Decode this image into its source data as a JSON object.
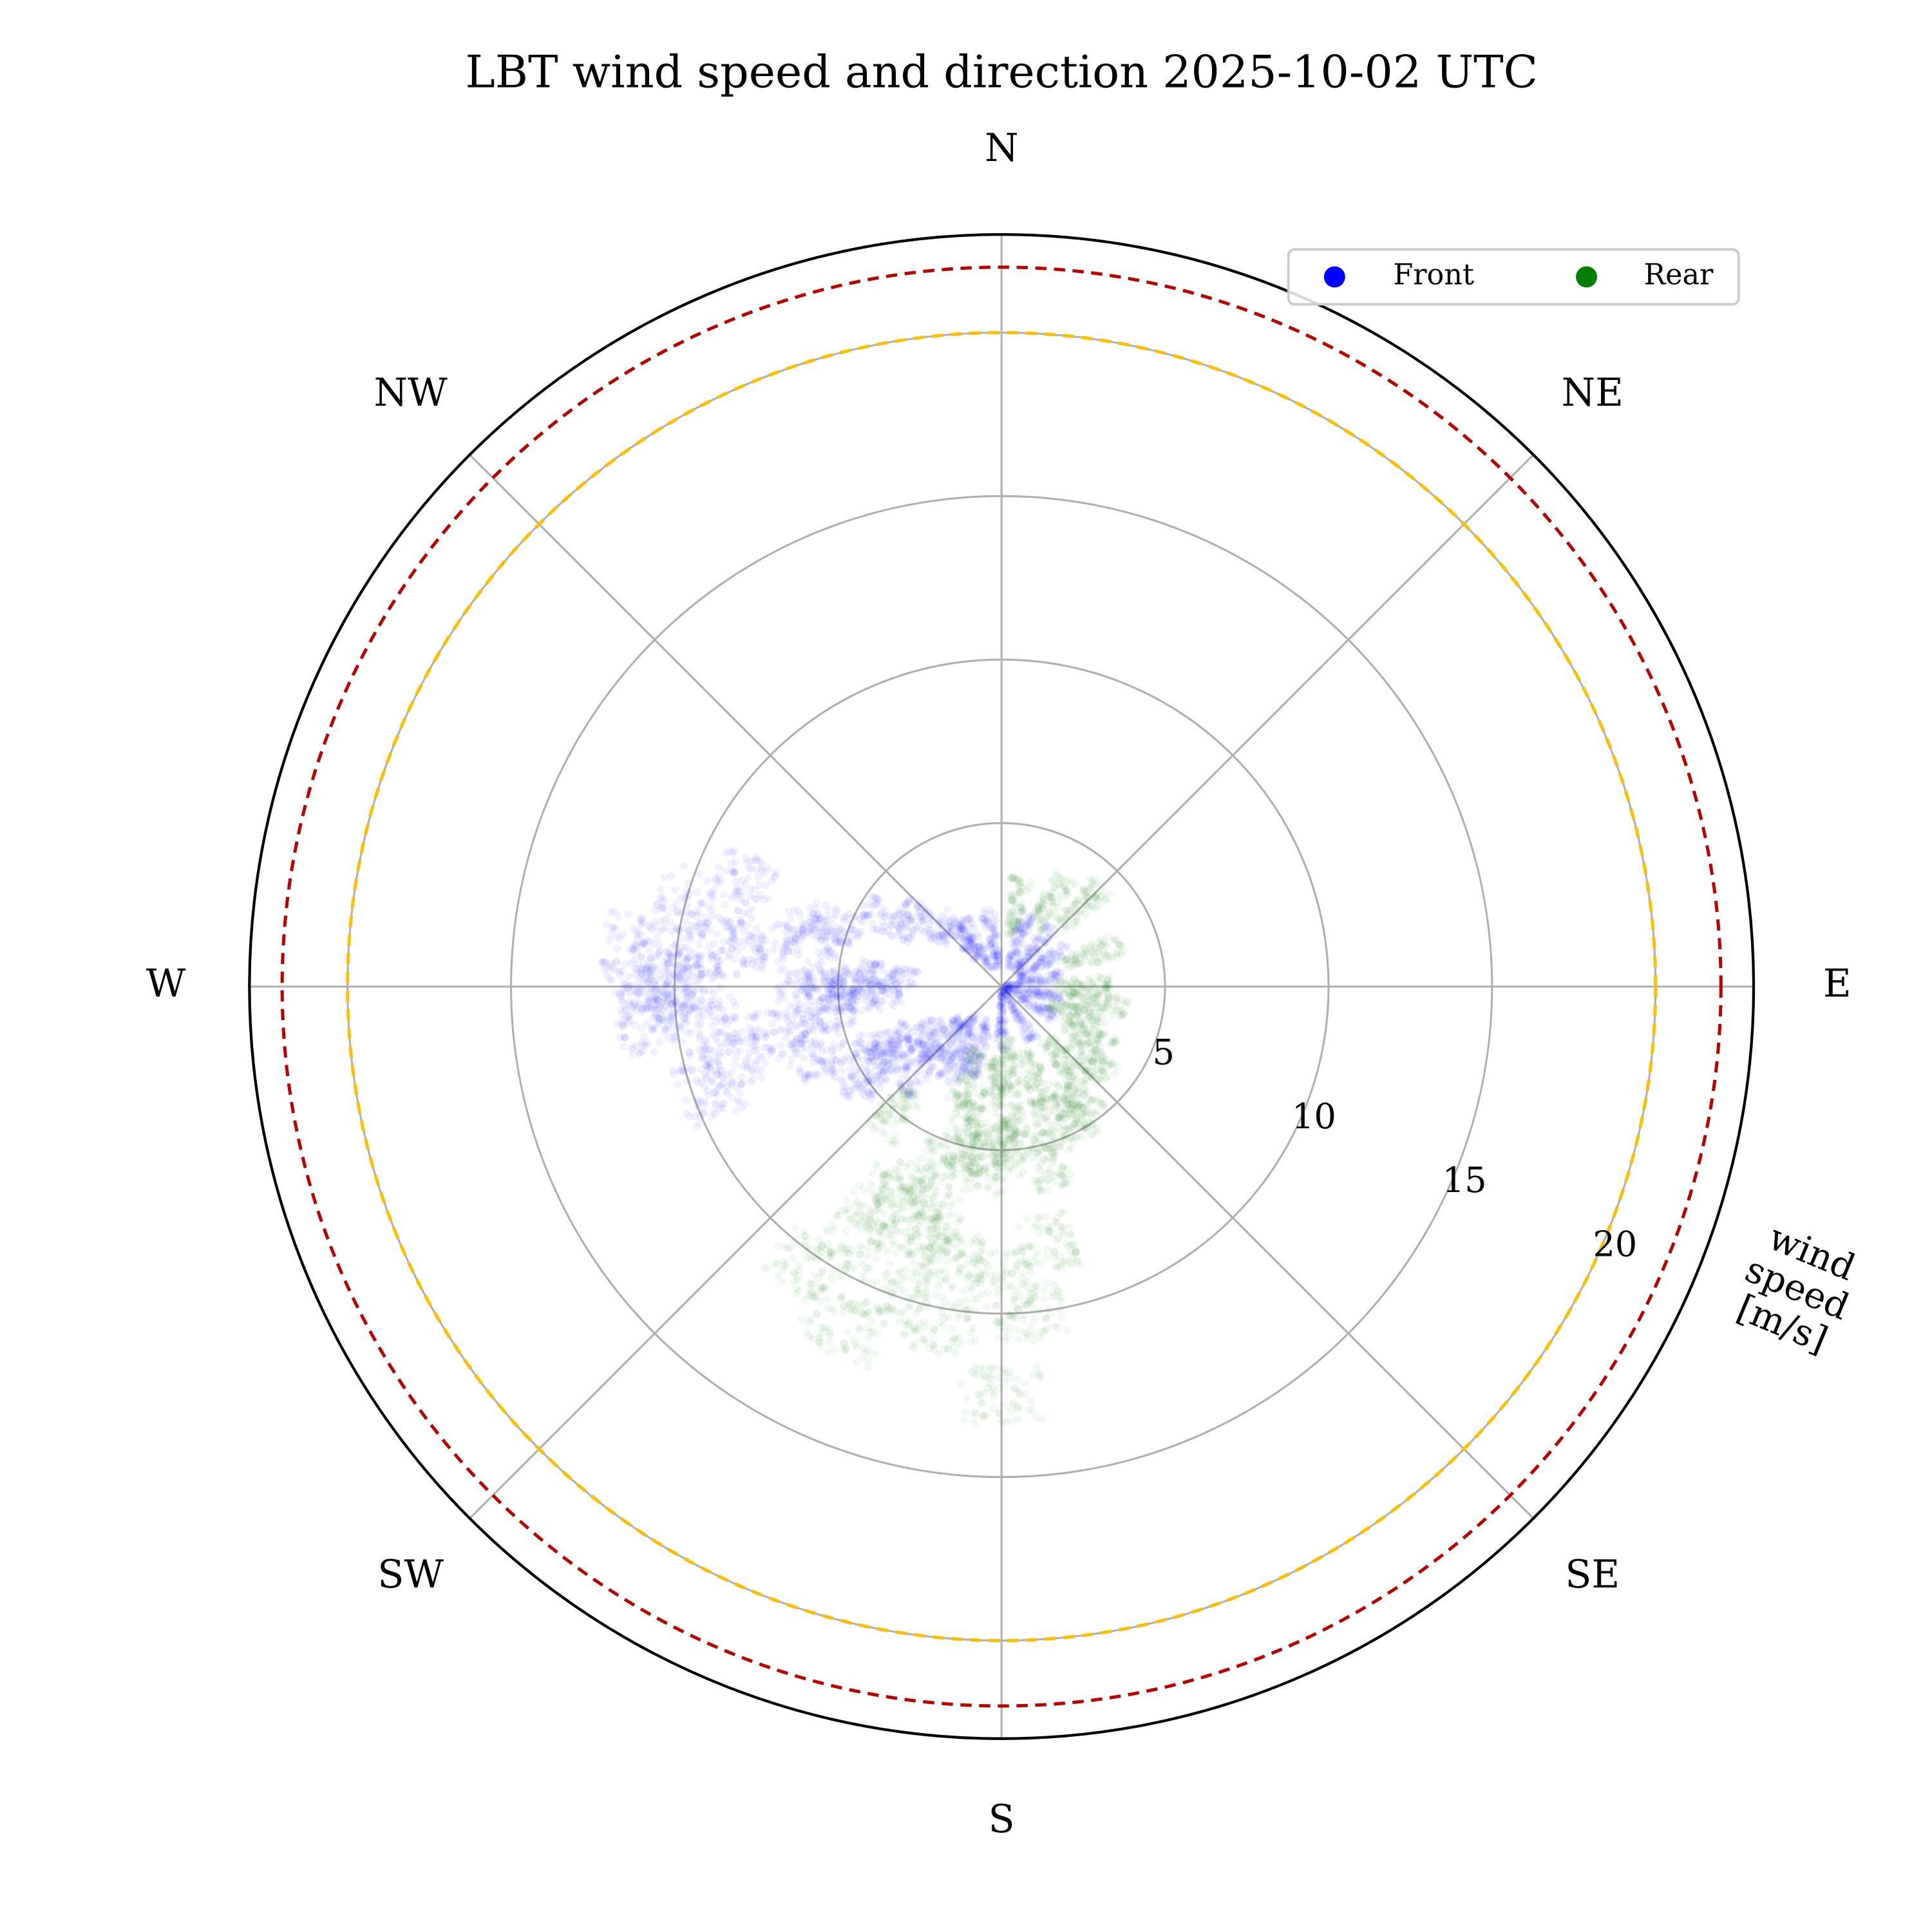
{
  "chart_data": {
    "type": "scatter",
    "projection": "polar",
    "title": "LBT wind speed and direction 2025-10-02 UTC",
    "theta_zero": "N",
    "theta_direction": "clockwise",
    "direction_labels": [
      "N",
      "NE",
      "E",
      "SE",
      "S",
      "SW",
      "W",
      "NW"
    ],
    "rlim": [
      0,
      23
    ],
    "rticks": [
      5,
      10,
      15,
      20
    ],
    "rlabel": "wind\nspeed\n[m/s]",
    "grid": true,
    "legend": {
      "position": "top-right",
      "columns": 2
    },
    "reference_circles": [
      {
        "r": 20,
        "color": "#ffbf00",
        "style": "dashed"
      },
      {
        "r": 22,
        "color": "#bb0000",
        "style": "dashed"
      }
    ],
    "series": [
      {
        "name": "Front",
        "color": "#0000ff",
        "point_alpha": 0.05,
        "points_dir_speed": [
          [
            270,
            4.5
          ],
          [
            272,
            5.2
          ],
          [
            268,
            6.0
          ],
          [
            265,
            4.0
          ],
          [
            275,
            3.5
          ],
          [
            262,
            5.5
          ],
          [
            270,
            10.0
          ],
          [
            268,
            11.0
          ],
          [
            272,
            10.5
          ],
          [
            270,
            9.5
          ],
          [
            275,
            11.5
          ],
          [
            265,
            10.8
          ],
          [
            258,
            7.0
          ],
          [
            250,
            6.0
          ],
          [
            245,
            4.0
          ],
          [
            240,
            3.0
          ],
          [
            230,
            2.5
          ],
          [
            220,
            2.0
          ],
          [
            210,
            2.5
          ],
          [
            200,
            2.0
          ],
          [
            280,
            7.5
          ],
          [
            285,
            6.0
          ],
          [
            290,
            5.5
          ],
          [
            300,
            4.0
          ],
          [
            310,
            3.0
          ],
          [
            320,
            2.0
          ],
          [
            330,
            1.5
          ],
          [
            350,
            1.5
          ],
          [
            20,
            1.5
          ],
          [
            40,
            1.5
          ],
          [
            60,
            1.5
          ],
          [
            80,
            1.0
          ],
          [
            100,
            1.0
          ],
          [
            120,
            1.0
          ],
          [
            150,
            1.0
          ],
          [
            180,
            1.0
          ],
          [
            255,
            8.5
          ],
          [
            262,
            9.0
          ],
          [
            278,
            9.0
          ],
          [
            285,
            10.0
          ],
          [
            292,
            8.5
          ],
          [
            250,
            9.5
          ],
          [
            240,
            5.0
          ],
          [
            235,
            4.5
          ],
          [
            225,
            3.5
          ]
        ]
      },
      {
        "name": "Rear",
        "color": "#007f00",
        "point_alpha": 0.05,
        "points_dir_speed": [
          [
            190,
            5.0
          ],
          [
            195,
            4.5
          ],
          [
            185,
            5.5
          ],
          [
            200,
            6.0
          ],
          [
            178,
            5.0
          ],
          [
            175,
            4.5
          ],
          [
            160,
            4.5
          ],
          [
            150,
            4.5
          ],
          [
            145,
            4.0
          ],
          [
            165,
            5.5
          ],
          [
            205,
            7.0
          ],
          [
            200,
            8.0
          ],
          [
            195,
            7.5
          ],
          [
            190,
            8.5
          ],
          [
            180,
            9.0
          ],
          [
            170,
            8.0
          ],
          [
            210,
            9.0
          ],
          [
            200,
            10.0
          ],
          [
            190,
            10.5
          ],
          [
            175,
            10.0
          ],
          [
            210,
            7.5
          ],
          [
            220,
            5.0
          ],
          [
            160,
            3.0
          ],
          [
            140,
            3.0
          ],
          [
            130,
            3.5
          ],
          [
            120,
            3.0
          ],
          [
            110,
            2.5
          ],
          [
            100,
            3.0
          ],
          [
            90,
            2.5
          ],
          [
            70,
            3.0
          ],
          [
            45,
            3.5
          ],
          [
            30,
            3.0
          ],
          [
            10,
            2.5
          ],
          [
            200,
            3.0
          ],
          [
            185,
            3.0
          ],
          [
            175,
            2.5
          ],
          [
            215,
            10.5
          ],
          [
            205,
            11.5
          ],
          [
            180,
            12.5
          ]
        ]
      }
    ]
  }
}
